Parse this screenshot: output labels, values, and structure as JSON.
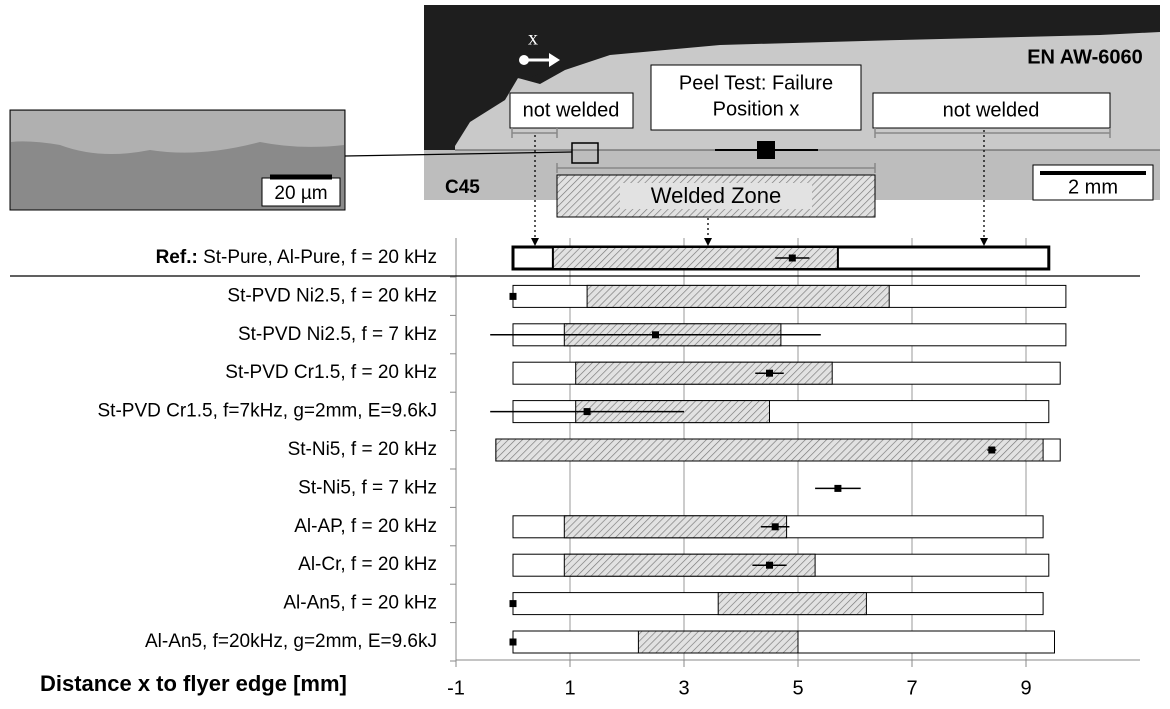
{
  "figure": {
    "arrow_label": "x",
    "flyer": "EN AW-6060",
    "base": "C45",
    "peel_title": [
      "Peel Test: Failure",
      "Position x"
    ],
    "not_welded_left": "not welded",
    "not_welded_right": "not welded",
    "welded_zone": "Welded Zone",
    "scale_macro": "2 mm",
    "scale_micro": "20 µm"
  },
  "chart_data": {
    "type": "range-bar",
    "xlabel": "Distance x to flyer edge [mm]",
    "ref_label": "Ref.:",
    "categories": [
      "St-Pure, Al-Pure, f = 20 kHz",
      "St-PVD Ni2.5, f = 20 kHz",
      "St-PVD Ni2.5, f = 7 kHz",
      "St-PVD Cr1.5, f = 20 kHz",
      "St-PVD Cr1.5, f=7kHz, g=2mm, E=9.6kJ",
      "St-Ni5, f = 20 kHz",
      "St-Ni5, f = 7 kHz",
      "Al-AP, f = 20 kHz",
      "Al-Cr, f = 20 kHz",
      "Al-An5, f = 20 kHz",
      "Al-An5, f=20kHz, g=2mm, E=9.6kJ"
    ],
    "bar_start": [
      0,
      0,
      0,
      0,
      0,
      -0.3,
      null,
      0,
      0,
      0,
      0
    ],
    "bar_end": [
      9.4,
      9.7,
      9.7,
      9.6,
      9.4,
      9.6,
      null,
      9.3,
      9.4,
      9.3,
      9.5
    ],
    "weld_start": [
      0.7,
      1.3,
      0.9,
      1.1,
      1.1,
      -0.3,
      null,
      0.9,
      0.9,
      3.6,
      2.2
    ],
    "weld_end": [
      5.7,
      6.6,
      4.7,
      5.6,
      4.5,
      9.3,
      null,
      4.8,
      5.3,
      6.2,
      5.0
    ],
    "failure": [
      4.9,
      0,
      2.5,
      4.5,
      1.3,
      8.4,
      5.7,
      4.6,
      4.5,
      0,
      0
    ],
    "failure_error": [
      0.3,
      null,
      2.9,
      0.25,
      1.7,
      0.08,
      0.4,
      0.25,
      0.3,
      null,
      null
    ],
    "xlim": [
      -1,
      11
    ],
    "xticks": [
      -1,
      1,
      3,
      5,
      7,
      9
    ],
    "grid": true
  }
}
